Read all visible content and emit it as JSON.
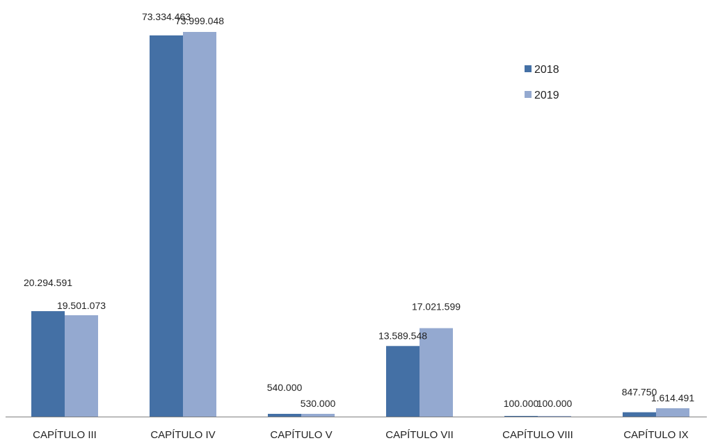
{
  "chart_data": {
    "type": "bar",
    "title": "",
    "xlabel": "",
    "ylabel": "",
    "categories": [
      "CAPÍTULO III",
      "CAPÍTULO IV",
      "CAPÍTULO V",
      "CAPÍTULO VII",
      "CAPÍTULO VIII",
      "CAPÍTULO IX"
    ],
    "series": [
      {
        "name": "2018",
        "color": "#4470A5",
        "values": [
          20294591,
          73334463,
          540000,
          13589548,
          100000,
          847750
        ],
        "labels": [
          "20.294.591",
          "73.334.463",
          "540.000",
          "13.589.548",
          "100.000",
          "847.750"
        ]
      },
      {
        "name": "2019",
        "color": "#94A9D0",
        "values": [
          19501073,
          73999048,
          530000,
          17021599,
          100000,
          1614491
        ],
        "labels": [
          "19.501.073",
          "73.999.048",
          "530.000",
          "17.021.599",
          "100.000",
          "1.614.491"
        ]
      }
    ],
    "ylim": [
      0,
      74000000
    ],
    "grid": false,
    "legend": "top-right",
    "axis_color": "#7F7F7F"
  }
}
